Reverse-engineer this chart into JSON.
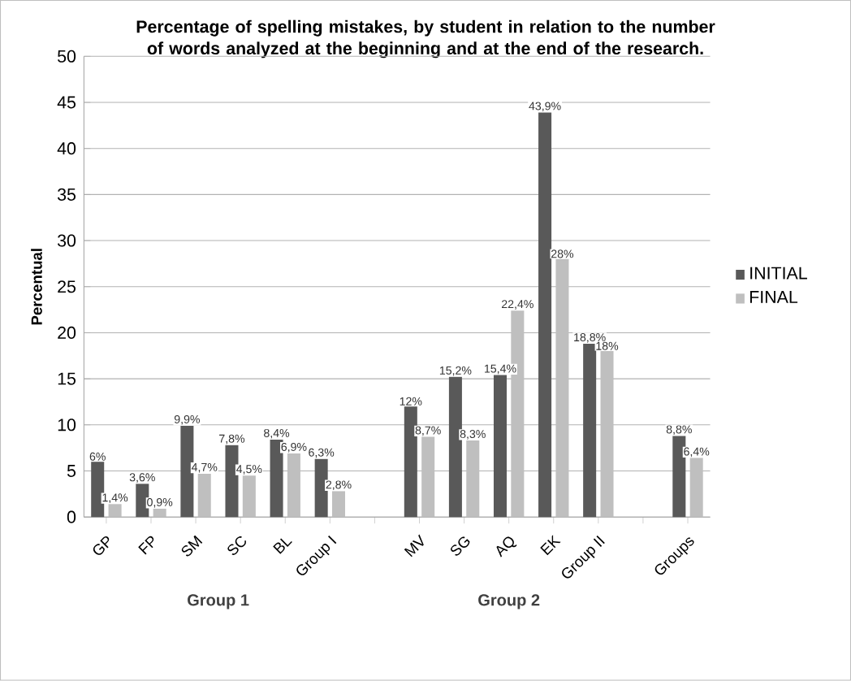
{
  "chart_data": {
    "type": "bar",
    "title": "Percentage of spelling mistakes, by student in relation to the number of words analyzed at the beginning and at the end of the research.",
    "ylabel": "Percentual",
    "categories": [
      "GP",
      "FP",
      "SM",
      "SC",
      "BL",
      "Group I",
      null,
      "MV",
      "SG",
      "AQ",
      "EK",
      "Group II",
      null,
      "Groups"
    ],
    "series": [
      {
        "name": "INITIAL",
        "color": "#595959",
        "values": [
          6,
          3.6,
          9.9,
          7.8,
          8.4,
          6.3,
          null,
          12,
          15.2,
          15.4,
          43.9,
          18.8,
          null,
          8.8
        ],
        "value_labels": [
          "6%",
          "3,6%",
          "9,9%",
          "7,8%",
          "8,4%",
          "6,3%",
          null,
          "12%",
          "15,2%",
          "15,4%",
          "43,9%",
          "18,8%",
          null,
          "8,8%"
        ]
      },
      {
        "name": "FINAL",
        "color": "#bfbfbf",
        "values": [
          1.4,
          0.9,
          4.7,
          4.5,
          6.9,
          2.8,
          null,
          8.7,
          8.3,
          22.4,
          28,
          18,
          null,
          6.4
        ],
        "value_labels": [
          "1,4%",
          "0,9%",
          "4,7%",
          "4,5%",
          "6,9%",
          "2,8%",
          null,
          "8,7%",
          "8,3%",
          "22,4%",
          "28%",
          "18%",
          null,
          "6,4%"
        ]
      }
    ],
    "annotations": [
      "Group 1",
      "Group 2"
    ],
    "ylim": [
      0,
      50
    ],
    "yticks": [
      0,
      5,
      10,
      15,
      20,
      25,
      30,
      35,
      40,
      45,
      50
    ],
    "grid": "y",
    "legend": "right"
  }
}
